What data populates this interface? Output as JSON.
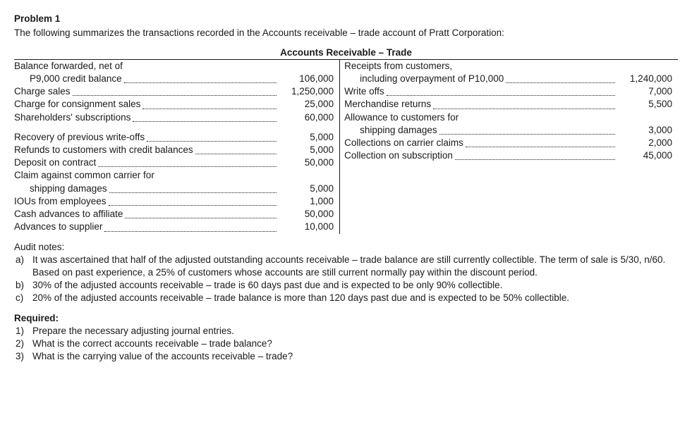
{
  "problem": {
    "title": "Problem 1",
    "intro": "The following summarizes the transactions recorded in the Accounts receivable – trade account of Pratt Corporation:",
    "ledger_title": "Accounts Receivable – Trade"
  },
  "debits": [
    {
      "label": "Balance forwarded, net of",
      "amount": ""
    },
    {
      "label": "P9,000 credit balance",
      "indent": true,
      "amount": "106,000"
    },
    {
      "label": "Charge sales",
      "amount": "1,250,000"
    },
    {
      "label": "Charge for consignment sales",
      "amount": "25,000"
    },
    {
      "label": "Shareholders' subscriptions",
      "amount": "60,000"
    },
    {
      "gap": true
    },
    {
      "label": "Recovery of previous write-offs",
      "amount": "5,000"
    },
    {
      "label": "Refunds to customers with credit balances",
      "amount": "5,000"
    },
    {
      "label": "Deposit on contract",
      "amount": "50,000"
    },
    {
      "label": "Claim against common carrier for",
      "amount": ""
    },
    {
      "label": "shipping damages",
      "indent": true,
      "amount": "5,000"
    },
    {
      "label": "IOUs from employees",
      "amount": "1,000"
    },
    {
      "label": "Cash advances to affiliate",
      "amount": "50,000"
    },
    {
      "label": "Advances to supplier",
      "amount": "10,000"
    }
  ],
  "credits": [
    {
      "label": "Receipts from customers,",
      "amount": ""
    },
    {
      "label": "including overpayment of P10,000",
      "indent": true,
      "amount": "1,240,000"
    },
    {
      "label": "Write offs",
      "amount": "7,000"
    },
    {
      "label": "Merchandise returns",
      "amount": "5,500"
    },
    {
      "label": "Allowance to customers for",
      "amount": ""
    },
    {
      "label": "shipping damages",
      "indent": true,
      "amount": "3,000"
    },
    {
      "label": "Collections on carrier claims",
      "amount": "2,000"
    },
    {
      "label": "Collection on subscription",
      "amount": "45,000"
    }
  ],
  "audit": {
    "heading": "Audit notes:",
    "items": [
      {
        "mk": "a)",
        "tx": "It was ascertained that half of the adjusted outstanding accounts receivable – trade balance are still currently collectible. The term of sale is 5/30, n/60. Based on past experience, a 25% of customers whose accounts are still current normally pay within the discount period."
      },
      {
        "mk": "b)",
        "tx": "30% of the adjusted accounts receivable – trade is 60 days past due and is expected to be only 90% collectible."
      },
      {
        "mk": "c)",
        "tx": "20% of the adjusted accounts receivable – trade balance is more than 120 days past due and is expected to be 50% collectible."
      }
    ]
  },
  "required": {
    "heading": "Required:",
    "items": [
      {
        "mk": "1)",
        "tx": "Prepare the necessary adjusting journal entries."
      },
      {
        "mk": "2)",
        "tx": "What is the correct accounts receivable – trade balance?"
      },
      {
        "mk": "3)",
        "tx": "What is the carrying value of the accounts receivable – trade?"
      }
    ]
  }
}
